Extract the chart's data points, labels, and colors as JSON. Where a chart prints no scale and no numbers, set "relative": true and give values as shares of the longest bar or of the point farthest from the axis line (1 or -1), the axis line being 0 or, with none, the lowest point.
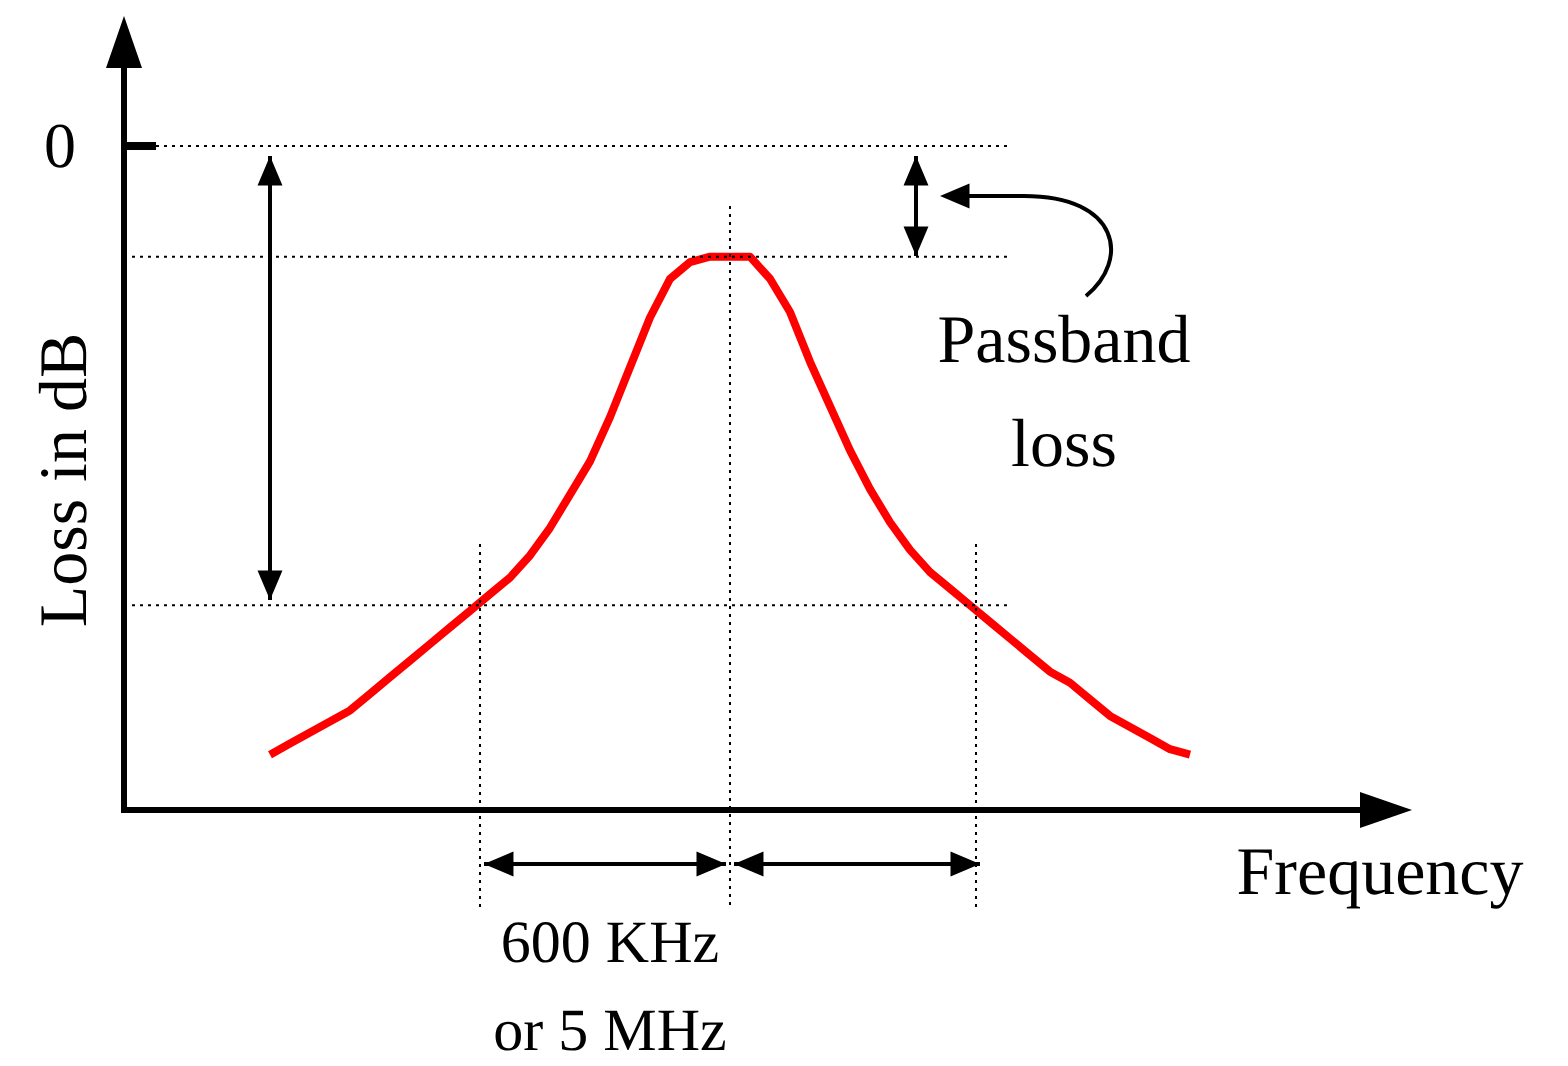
{
  "chart_data": {
    "type": "line",
    "relative": true,
    "ylabel": "Loss in dB",
    "xlabel": "Frequency",
    "categories": [
      null,
      null,
      null,
      null,
      null,
      null,
      null,
      null,
      null,
      null,
      null,
      null,
      null,
      null,
      null,
      null,
      null,
      null,
      null,
      null,
      null,
      null,
      null,
      null,
      null,
      null,
      null,
      null,
      null,
      null,
      null,
      null,
      null,
      null,
      null,
      null,
      null,
      null,
      null,
      null,
      null,
      null,
      null,
      null,
      null,
      null,
      null
    ],
    "series": [
      {
        "color": "#ff0000",
        "values": [
          0.1,
          0.12,
          0.14,
          0.16,
          0.18,
          0.21,
          0.24,
          0.27,
          0.3,
          0.33,
          0.36,
          0.39,
          0.42,
          0.46,
          0.51,
          0.57,
          0.63,
          0.71,
          0.8,
          0.89,
          0.96,
          0.99,
          1,
          1,
          1,
          0.96,
          0.9,
          0.81,
          0.73,
          0.65,
          0.58,
          0.52,
          0.47,
          0.43,
          0.4,
          0.37,
          0.34,
          0.31,
          0.28,
          0.25,
          0.23,
          0.2,
          0.17,
          0.15,
          0.13,
          0.11,
          0.1
        ]
      }
    ],
    "ref_lines": [
      {
        "axis": "y",
        "value": 1.2,
        "line_style": "dotted"
      },
      {
        "axis": "y",
        "value": 1,
        "line_style": "dotted"
      },
      {
        "axis": "y",
        "value": 0.37,
        "line_style": "dotted"
      }
    ],
    "annotations": [
      "Passband\nloss",
      "600 KHz\nor 5 MHz",
      "0"
    ],
    "marker": "none",
    "line_style": "solid",
    "legend": false
  }
}
